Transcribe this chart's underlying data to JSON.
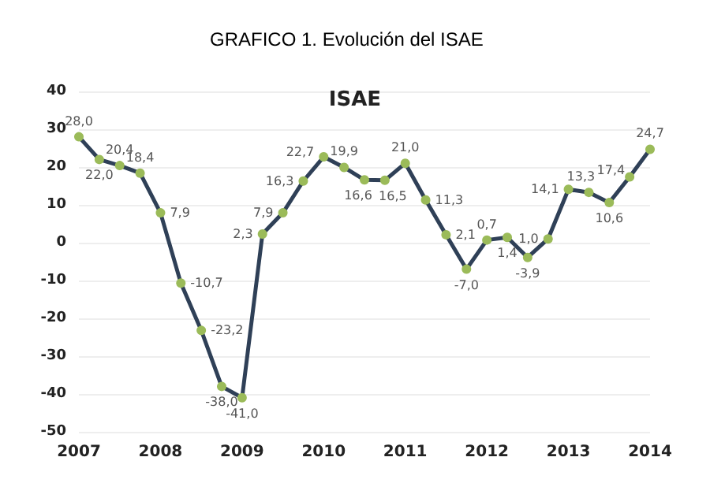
{
  "chart_data": {
    "type": "line",
    "title": "GRAFICO 1. Evolución del ISAE",
    "subtitle": "ISAE",
    "x": [
      2007,
      2007.25,
      2007.5,
      2007.75,
      2008,
      2008.25,
      2008.5,
      2008.75,
      2009,
      2009.25,
      2009.5,
      2009.75,
      2010,
      2010.25,
      2010.5,
      2010.75,
      2011,
      2011.25,
      2011.5,
      2011.75,
      2012,
      2012.25,
      2012.5,
      2012.75,
      2013,
      2013.25,
      2013.5,
      2013.75,
      2014
    ],
    "series": [
      {
        "color": "#2f4057",
        "colors": [
          "#9bbb59",
          "#9bbb59",
          "#9bbb59",
          "#9bbb59",
          "#9bbb59",
          "#9bbb59",
          "#9bbb59",
          "#9bbb59",
          "#9bbb59",
          "#9bbb59",
          "#9bbb59",
          "#9bbb59",
          "#9bbb59",
          "#9bbb59",
          "#9bbb59",
          "#9bbb59",
          "#9bbb59",
          "#9bbb59",
          "#9bbb59",
          "#9bbb59",
          "#9bbb59",
          "#9bbb59",
          "#9bbb59",
          "#9bbb59",
          "#9bbb59",
          "#9bbb59",
          "#9bbb59",
          "#9bbb59",
          "#9bbb59"
        ],
        "values": [
          28.0,
          22.0,
          20.4,
          18.4,
          7.9,
          -10.7,
          -23.2,
          -38.0,
          -41.0,
          2.3,
          7.9,
          16.3,
          22.7,
          19.9,
          16.6,
          16.5,
          21.0,
          11.3,
          2.1,
          -7.0,
          0.7,
          1.4,
          -3.9,
          1.0,
          14.1,
          13.3,
          10.6,
          17.4,
          24.7
        ],
        "value_labels": [
          "28,0",
          "22,0",
          "20,4",
          "18,4",
          "7,9",
          "-10,7",
          "-23,2",
          "-38,0",
          "-41,0",
          "2,3",
          "7,9",
          "16,3",
          "22,7",
          "19,9",
          "16,6",
          "16,5",
          "21,0",
          "11,3",
          "2,1",
          "-7,0",
          "0,7",
          "1,4",
          "-3,9",
          "1,0",
          "14,1",
          "13,3",
          "10,6",
          "17,4",
          "24,7"
        ]
      }
    ],
    "xlim": [
      2007,
      2014
    ],
    "xticks": [
      2007,
      2008,
      2009,
      2010,
      2011,
      2012,
      2013,
      2014
    ],
    "ylim": [
      -50,
      40
    ],
    "yticks": [
      -50,
      -40,
      -30,
      -20,
      -10,
      0,
      10,
      20,
      30,
      40
    ],
    "grid": "y",
    "marker": "circle",
    "line_style": "solid",
    "data_labels": true
  }
}
